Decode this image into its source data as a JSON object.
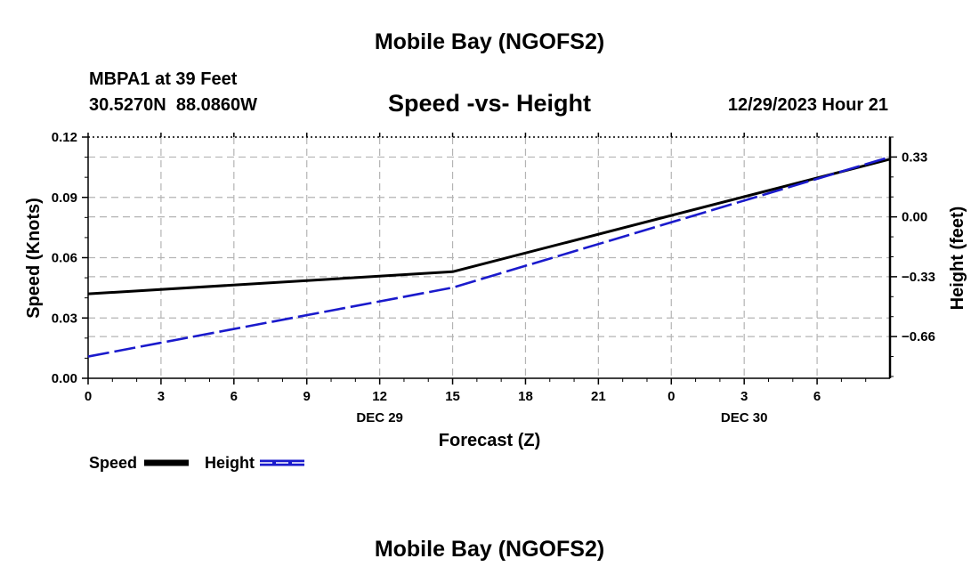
{
  "page": {
    "top_title": "Mobile Bay (NGOFS2)",
    "bottom_title": "Mobile Bay (NGOFS2)"
  },
  "station": {
    "name_line": "MBPA1 at 39 Feet",
    "coords_line": "30.5270N  88.0860W",
    "datetime": "12/29/2023 Hour 21"
  },
  "colors": {
    "speed": "#000000",
    "height": "#1a1acc",
    "grid": "#b4b4b4"
  },
  "chart_data": {
    "type": "line",
    "title": "Speed -vs- Height",
    "xlabel": "Forecast (Z)",
    "ylabel_left": "Speed (Knots)",
    "ylabel_right": "Height (feet)",
    "x_hours": [
      0,
      15,
      33
    ],
    "xlim": [
      0,
      33
    ],
    "x_ticks": [
      {
        "hour": 0,
        "label": "0"
      },
      {
        "hour": 3,
        "label": "3"
      },
      {
        "hour": 6,
        "label": "6"
      },
      {
        "hour": 9,
        "label": "9"
      },
      {
        "hour": 12,
        "label": "12"
      },
      {
        "hour": 15,
        "label": "15"
      },
      {
        "hour": 18,
        "label": "18"
      },
      {
        "hour": 21,
        "label": "21"
      },
      {
        "hour": 24,
        "label": "0"
      },
      {
        "hour": 27,
        "label": "3"
      },
      {
        "hour": 30,
        "label": "6"
      }
    ],
    "date_labels": [
      {
        "hour": 12,
        "label": "DEC 29"
      },
      {
        "hour": 27,
        "label": "DEC 30"
      }
    ],
    "ylim_left": [
      0,
      0.12
    ],
    "yticks_left": [
      {
        "value": 0.0,
        "label": "0.00"
      },
      {
        "value": 0.03,
        "label": "0.03"
      },
      {
        "value": 0.06,
        "label": "0.06"
      },
      {
        "value": 0.09,
        "label": "0.09"
      },
      {
        "value": 0.12,
        "label": "0.12"
      }
    ],
    "ylim_right": [
      -0.89,
      0.44
    ],
    "yticks_right": [
      {
        "value": 0.33,
        "label": "0.33"
      },
      {
        "value": 0.0,
        "label": "0.00"
      },
      {
        "value": -0.33,
        "label": "−0.33"
      },
      {
        "value": -0.66,
        "label": "−0.66"
      }
    ],
    "series": [
      {
        "name": "Speed",
        "axis": "left",
        "style": "solid",
        "values": [
          0.042,
          0.053,
          0.109
        ]
      },
      {
        "name": "Height",
        "axis": "right",
        "style": "dashed",
        "values": [
          -0.77,
          -0.39,
          0.33
        ]
      }
    ],
    "legend": {
      "position": "bottom-left"
    }
  }
}
